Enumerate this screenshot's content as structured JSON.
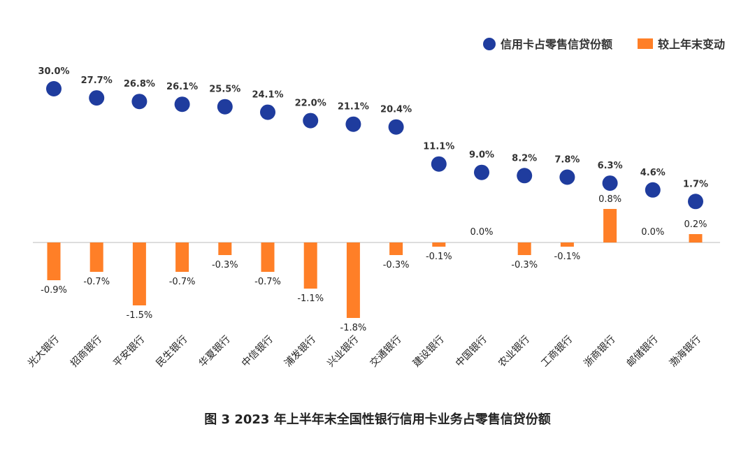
{
  "caption": "图 3 2023 年上半年末全国性银行信用卡业务占零售信贷份额",
  "colors": {
    "dot": "#1f3c9e",
    "bar": "#ff7f27",
    "axis": "#bbbbbb"
  },
  "chart_data": {
    "type": "scatter+bar",
    "categories": [
      "光大银行",
      "招商银行",
      "平安银行",
      "民生银行",
      "华夏银行",
      "中信银行",
      "浦发银行",
      "兴业银行",
      "交通银行",
      "建设银行",
      "中国银行",
      "农业银行",
      "工商银行",
      "浙商银行",
      "邮储银行",
      "渤海银行"
    ],
    "series": [
      {
        "name": "信用卡占零售信贷份额",
        "type": "scatter",
        "values": [
          30.0,
          27.7,
          26.8,
          26.1,
          25.5,
          24.1,
          22.0,
          21.1,
          20.4,
          11.1,
          9.0,
          8.2,
          7.8,
          6.3,
          4.6,
          1.7
        ],
        "labels": [
          "30.0%",
          "27.7%",
          "26.8%",
          "26.1%",
          "25.5%",
          "24.1%",
          "22.0%",
          "21.1%",
          "20.4%",
          "11.1%",
          "9.0%",
          "8.2%",
          "7.8%",
          "6.3%",
          "4.6%",
          "1.7%"
        ]
      },
      {
        "name": "较上年末变动",
        "type": "bar",
        "values": [
          -0.9,
          -0.7,
          -1.5,
          -0.7,
          -0.3,
          -0.7,
          -1.1,
          -1.8,
          -0.3,
          -0.1,
          0.0,
          -0.3,
          -0.1,
          0.8,
          0.0,
          0.2
        ],
        "labels": [
          "-0.9%",
          "-0.7%",
          "-1.5%",
          "-0.7%",
          "-0.3%",
          "-0.7%",
          "-1.1%",
          "-1.8%",
          "-0.3%",
          "-0.1%",
          "0.0%",
          "-0.3%",
          "-0.1%",
          "0.8%",
          "0.0%",
          "0.2%"
        ]
      }
    ],
    "legend_position": "top-right",
    "grid": false
  }
}
